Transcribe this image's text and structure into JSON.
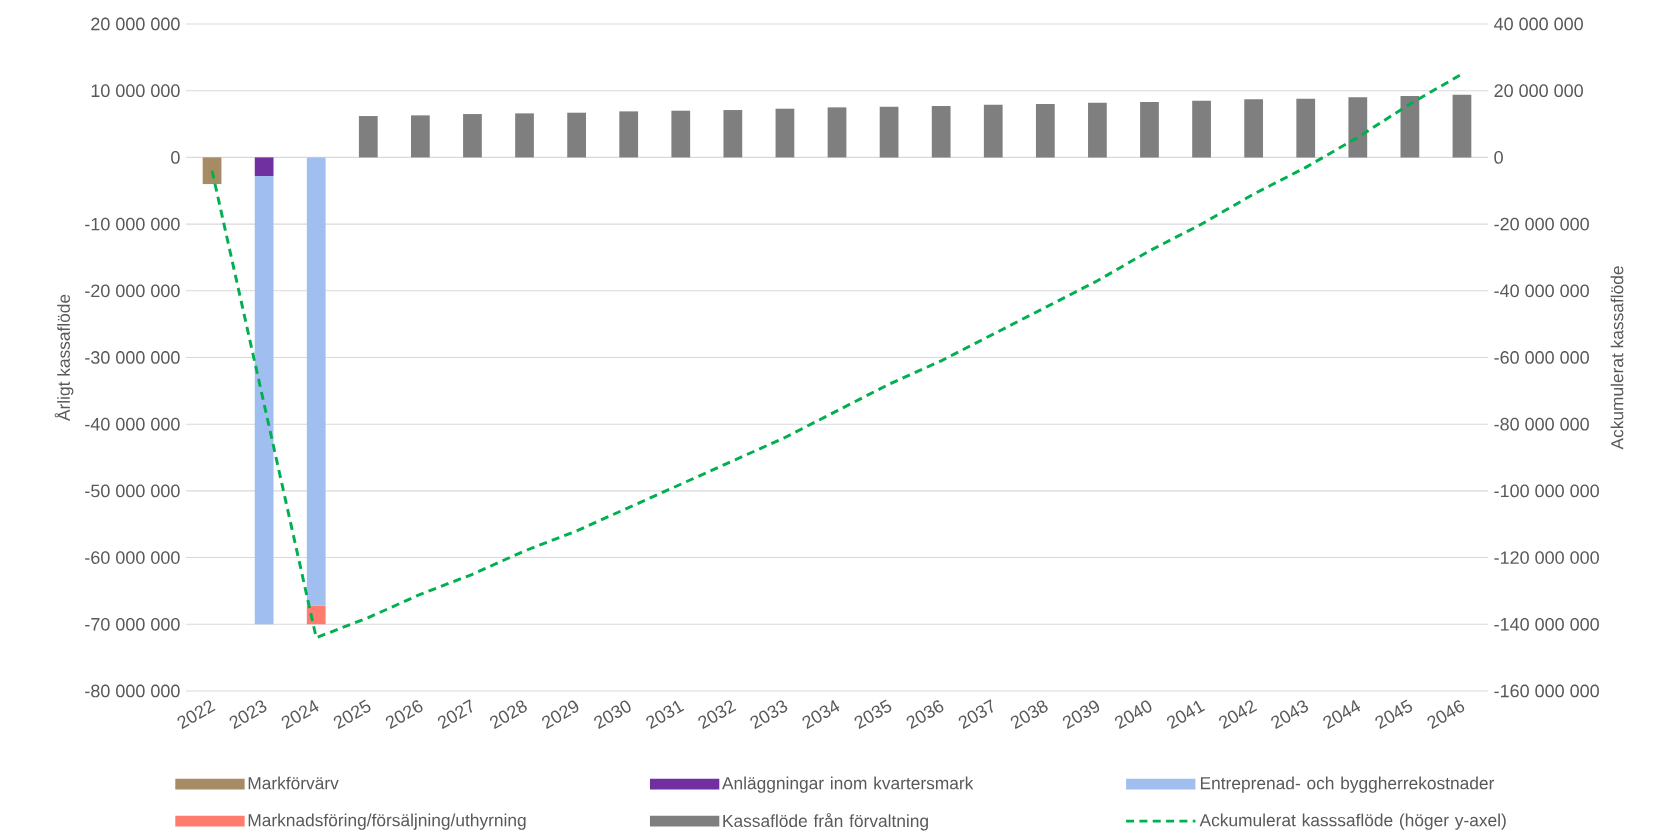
{
  "chart_data": {
    "type": "bar",
    "stacked": true,
    "categories": [
      "2022",
      "2023",
      "2024",
      "2025",
      "2026",
      "2027",
      "2028",
      "2029",
      "2030",
      "2031",
      "2032",
      "2033",
      "2034",
      "2035",
      "2036",
      "2037",
      "2038",
      "2039",
      "2040",
      "2041",
      "2042",
      "2043",
      "2044",
      "2045",
      "2046"
    ],
    "ylabel": "Årligt kassaflöde",
    "y2label": "Ackumulerat kassaflöde",
    "ylim": [
      -80000000,
      20000000
    ],
    "yticks": [
      {
        "value": -80000000,
        "label": "-80 000 000"
      },
      {
        "value": -70000000,
        "label": "-70 000 000"
      },
      {
        "value": -60000000,
        "label": "-60 000 000"
      },
      {
        "value": -50000000,
        "label": "-50 000 000"
      },
      {
        "value": -40000000,
        "label": "-40 000 000"
      },
      {
        "value": -30000000,
        "label": "-30 000 000"
      },
      {
        "value": -20000000,
        "label": "-20 000 000"
      },
      {
        "value": -10000000,
        "label": "-10 000 000"
      },
      {
        "value": 0,
        "label": "0"
      },
      {
        "value": 10000000,
        "label": "10 000 000"
      },
      {
        "value": 20000000,
        "label": "20 000 000"
      }
    ],
    "y2lim": [
      -160000000,
      40000000
    ],
    "y2ticks": [
      {
        "value": -160000000,
        "label": "-160 000 000"
      },
      {
        "value": -140000000,
        "label": "-140 000 000"
      },
      {
        "value": -120000000,
        "label": "-120 000 000"
      },
      {
        "value": -100000000,
        "label": "-100 000 000"
      },
      {
        "value": -80000000,
        "label": "-80 000 000"
      },
      {
        "value": -60000000,
        "label": "-60 000 000"
      },
      {
        "value": -40000000,
        "label": "-40 000 000"
      },
      {
        "value": -20000000,
        "label": "-20 000 000"
      },
      {
        "value": 0,
        "label": "0"
      },
      {
        "value": 20000000,
        "label": "20 000 000"
      },
      {
        "value": 40000000,
        "label": "40 000 000"
      }
    ],
    "grid": "y",
    "legend": "bottom",
    "series": [
      {
        "name": "Markförvärv",
        "color": "#a68c64",
        "values": [
          -4000000,
          null,
          null,
          null,
          null,
          null,
          null,
          null,
          null,
          null,
          null,
          null,
          null,
          null,
          null,
          null,
          null,
          null,
          null,
          null,
          null,
          null,
          null,
          null,
          null
        ]
      },
      {
        "name": "Anläggningar inom kvartersmark",
        "color": "#7030a0",
        "values": [
          null,
          -2800000,
          null,
          null,
          null,
          null,
          null,
          null,
          null,
          null,
          null,
          null,
          null,
          null,
          null,
          null,
          null,
          null,
          null,
          null,
          null,
          null,
          null,
          null,
          null
        ]
      },
      {
        "name": "Entreprenad- och byggherrekostnader",
        "color": "#a0bef0",
        "values": [
          null,
          -67200000,
          -67200000,
          null,
          null,
          null,
          null,
          null,
          null,
          null,
          null,
          null,
          null,
          null,
          null,
          null,
          null,
          null,
          null,
          null,
          null,
          null,
          null,
          null,
          null
        ]
      },
      {
        "name": "Marknadsföring/försäljning/uthyrning",
        "color": "#ff7b6e",
        "values": [
          null,
          null,
          -2800000,
          null,
          null,
          null,
          null,
          null,
          null,
          null,
          null,
          null,
          null,
          null,
          null,
          null,
          null,
          null,
          null,
          null,
          null,
          null,
          null,
          null,
          null
        ]
      },
      {
        "name": "Kassaflöde från förvaltning",
        "color": "#7f7f7f",
        "values": [
          null,
          null,
          null,
          6200000,
          6300000,
          6500000,
          6600000,
          6700000,
          6900000,
          7000000,
          7100000,
          7300000,
          7500000,
          7600000,
          7700000,
          7900000,
          8000000,
          8200000,
          8300000,
          8500000,
          8700000,
          8800000,
          9000000,
          9200000,
          9400000
        ]
      },
      {
        "name": "Ackumulerat kasssaflöde (höger y-axel)",
        "type": "line",
        "axis": "y2",
        "color": "#00b050",
        "line_style": "dashed",
        "marker": "none",
        "values": [
          -4000000,
          -74000000,
          -144000000,
          -138000000,
          -131000000,
          -125000000,
          -118000000,
          -112000000,
          -105000000,
          -98000000,
          -91000000,
          -84000000,
          -76000000,
          -68000000,
          -61000000,
          -53000000,
          -45000000,
          -37000000,
          -28000000,
          -20000000,
          -11000000,
          -3000000,
          6000000,
          16000000,
          25000000
        ]
      }
    ]
  }
}
